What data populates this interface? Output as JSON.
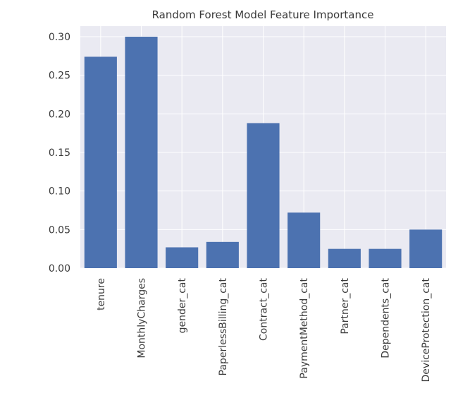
{
  "chart_data": {
    "type": "bar",
    "title": "Random Forest Model Feature Importance",
    "categories": [
      "tenure",
      "MonthlyCharges",
      "gender_cat",
      "PaperlessBilling_cat",
      "Contract_cat",
      "PaymentMethod_cat",
      "Partner_cat",
      "Dependents_cat",
      "DeviceProtection_cat"
    ],
    "values": [
      0.274,
      0.3,
      0.027,
      0.034,
      0.188,
      0.072,
      0.025,
      0.025,
      0.05
    ],
    "ylim": [
      0,
      0.31
    ],
    "yticks": [
      "0.00",
      "0.05",
      "0.10",
      "0.15",
      "0.20",
      "0.25",
      "0.30"
    ],
    "xlabel": "",
    "ylabel": "",
    "grid": true,
    "bar_color": "#4c72b0",
    "background_color": "#eaeaf2",
    "gridline_color": "#ffffff"
  }
}
